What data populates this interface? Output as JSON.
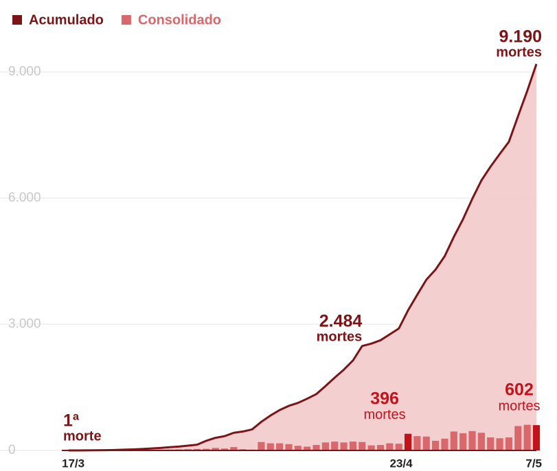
{
  "chart_data": {
    "type": "area_bar",
    "categories": [
      "17/3",
      null,
      null,
      null,
      null,
      null,
      null,
      null,
      null,
      null,
      null,
      null,
      null,
      null,
      null,
      null,
      null,
      null,
      null,
      null,
      null,
      null,
      null,
      null,
      null,
      null,
      null,
      null,
      null,
      null,
      null,
      null,
      null,
      null,
      null,
      null,
      null,
      "23/4",
      null,
      null,
      null,
      null,
      null,
      null,
      null,
      null,
      null,
      null,
      null,
      null,
      null,
      "7/5"
    ],
    "series": [
      {
        "name": "Acumulado",
        "color": "#7b1416",
        "area_color": "#f2c7c8",
        "values": [
          1,
          1,
          2,
          4,
          6,
          11,
          18,
          25,
          34,
          46,
          60,
          77,
          92,
          114,
          136,
          230,
          300,
          340,
          420,
          450,
          500,
          680,
          830,
          960,
          1060,
          1130,
          1230,
          1340,
          1530,
          1730,
          1920,
          2140,
          2484,
          2540,
          2620,
          2760,
          2900,
          3330,
          3700,
          4060,
          4300,
          4620,
          5080,
          5500,
          5980,
          6420,
          6750,
          7050,
          7340,
          7950,
          8550,
          9190
        ],
        "value_labels": [
          "1ª",
          null,
          null,
          null,
          null,
          null,
          null,
          null,
          null,
          null,
          null,
          null,
          null,
          null,
          null,
          null,
          null,
          null,
          null,
          null,
          null,
          null,
          null,
          null,
          null,
          null,
          null,
          null,
          null,
          null,
          null,
          null,
          "2.484",
          null,
          null,
          null,
          null,
          null,
          null,
          null,
          null,
          null,
          null,
          null,
          null,
          null,
          null,
          null,
          null,
          null,
          null,
          "9.190"
        ]
      },
      {
        "name": "Consolidado",
        "color": "#d9686c",
        "highlight_color": "#c4121c",
        "values": [
          1,
          0,
          1,
          1,
          2,
          3,
          6,
          7,
          9,
          12,
          18,
          22,
          25,
          30,
          35,
          40,
          60,
          45,
          80,
          30,
          20,
          200,
          170,
          170,
          150,
          110,
          90,
          130,
          190,
          210,
          190,
          210,
          200,
          120,
          130,
          170,
          160,
          396,
          340,
          330,
          230,
          280,
          450,
          410,
          460,
          420,
          310,
          290,
          310,
          580,
          610,
          602
        ],
        "value_labels": [
          null,
          null,
          null,
          null,
          null,
          null,
          null,
          null,
          null,
          null,
          null,
          null,
          null,
          null,
          null,
          null,
          null,
          null,
          null,
          null,
          null,
          null,
          null,
          null,
          null,
          null,
          null,
          null,
          null,
          null,
          null,
          null,
          null,
          null,
          null,
          null,
          null,
          "396",
          null,
          null,
          null,
          null,
          null,
          null,
          null,
          null,
          null,
          null,
          null,
          null,
          null,
          "602"
        ]
      }
    ],
    "unit_singular": "morte",
    "unit": "mortes",
    "ylim": [
      0,
      9600
    ],
    "yticks": [
      0,
      {
        "value": 3000,
        "label": "3.000"
      },
      {
        "value": 6000,
        "label": "6.000"
      },
      {
        "value": 9000,
        "label": "9.000"
      }
    ],
    "grid": true
  }
}
